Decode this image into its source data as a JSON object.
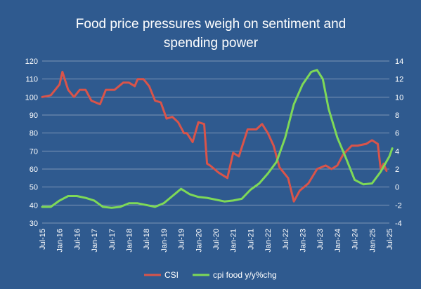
{
  "chart_data": {
    "type": "line",
    "title_lines": [
      "Food price pressures weigh on sentiment and",
      "spending power"
    ],
    "x_tick_labels": [
      "Jul-15",
      "Jan-16",
      "Jul-16",
      "Jan-17",
      "Jul-17",
      "Jan-18",
      "Jul-18",
      "Jan-19",
      "Jul-19",
      "Jan-20",
      "Jul-20",
      "Jan-21",
      "Jul-21",
      "Jan-22",
      "Jul-22",
      "Jan-23",
      "Jul-23",
      "Jan-24",
      "Jul-24",
      "Jan-25",
      "Jul-25"
    ],
    "y_left": {
      "min": 30,
      "max": 120,
      "step": 10
    },
    "y_right": {
      "min": -4,
      "max": 14,
      "step": 2
    },
    "grid": "horizontal",
    "legend_position": "bottom",
    "colors": {
      "background": "#2f5a8f",
      "grid": "#7d95b6",
      "csi": "#d9544a",
      "cpi_food": "#7ed957",
      "text": "#ffffff"
    },
    "series": [
      {
        "name": "CSI",
        "axis": "left",
        "points": [
          [
            "2015-07",
            100
          ],
          [
            "2015-10",
            101
          ],
          [
            "2016-01",
            107
          ],
          [
            "2016-02",
            114
          ],
          [
            "2016-04",
            104
          ],
          [
            "2016-06",
            100
          ],
          [
            "2016-08",
            104
          ],
          [
            "2016-10",
            104
          ],
          [
            "2016-12",
            98
          ],
          [
            "2017-03",
            96
          ],
          [
            "2017-05",
            104
          ],
          [
            "2017-08",
            104
          ],
          [
            "2017-11",
            108
          ],
          [
            "2018-01",
            108
          ],
          [
            "2018-03",
            106
          ],
          [
            "2018-04",
            110
          ],
          [
            "2018-06",
            110
          ],
          [
            "2018-08",
            106
          ],
          [
            "2018-10",
            98
          ],
          [
            "2018-12",
            97
          ],
          [
            "2019-02",
            88
          ],
          [
            "2019-04",
            89
          ],
          [
            "2019-06",
            86
          ],
          [
            "2019-08",
            80
          ],
          [
            "2019-09",
            80
          ],
          [
            "2019-11",
            75
          ],
          [
            "2020-01",
            86
          ],
          [
            "2020-03",
            85
          ],
          [
            "2020-04",
            63
          ],
          [
            "2020-05",
            62
          ],
          [
            "2020-08",
            58
          ],
          [
            "2020-11",
            55
          ],
          [
            "2021-01",
            69
          ],
          [
            "2021-03",
            67
          ],
          [
            "2021-06",
            82
          ],
          [
            "2021-09",
            82
          ],
          [
            "2021-11",
            85
          ],
          [
            "2022-01",
            80
          ],
          [
            "2022-03",
            73
          ],
          [
            "2022-05",
            61
          ],
          [
            "2022-08",
            55
          ],
          [
            "2022-10",
            42
          ],
          [
            "2022-12",
            48
          ],
          [
            "2023-03",
            52
          ],
          [
            "2023-06",
            60
          ],
          [
            "2023-09",
            62
          ],
          [
            "2023-11",
            60
          ],
          [
            "2024-01",
            62
          ],
          [
            "2024-03",
            68
          ],
          [
            "2024-06",
            73
          ],
          [
            "2024-08",
            73
          ],
          [
            "2024-11",
            74
          ],
          [
            "2025-01",
            76
          ],
          [
            "2025-03",
            74
          ],
          [
            "2025-04",
            60
          ],
          [
            "2025-05",
            63
          ],
          [
            "2025-06",
            59
          ]
        ]
      },
      {
        "name": "cpi food y/y%chg",
        "axis": "right",
        "points": [
          [
            "2015-07",
            -2.2
          ],
          [
            "2015-10",
            -2.2
          ],
          [
            "2016-01",
            -1.5
          ],
          [
            "2016-04",
            -1.0
          ],
          [
            "2016-07",
            -1.0
          ],
          [
            "2016-10",
            -1.2
          ],
          [
            "2017-01",
            -1.5
          ],
          [
            "2017-04",
            -2.2
          ],
          [
            "2017-07",
            -2.3
          ],
          [
            "2017-10",
            -2.2
          ],
          [
            "2018-01",
            -1.8
          ],
          [
            "2018-04",
            -1.8
          ],
          [
            "2018-07",
            -2.0
          ],
          [
            "2018-10",
            -2.2
          ],
          [
            "2019-01",
            -1.8
          ],
          [
            "2019-04",
            -1.0
          ],
          [
            "2019-07",
            -0.2
          ],
          [
            "2019-10",
            -0.8
          ],
          [
            "2020-01",
            -1.1
          ],
          [
            "2020-04",
            -1.2
          ],
          [
            "2020-07",
            -1.4
          ],
          [
            "2020-10",
            -1.6
          ],
          [
            "2021-01",
            -1.5
          ],
          [
            "2021-04",
            -1.3
          ],
          [
            "2021-07",
            -0.3
          ],
          [
            "2021-10",
            0.4
          ],
          [
            "2022-01",
            1.5
          ],
          [
            "2022-04",
            2.8
          ],
          [
            "2022-07",
            5.5
          ],
          [
            "2022-10",
            9.2
          ],
          [
            "2023-01",
            11.4
          ],
          [
            "2023-04",
            12.8
          ],
          [
            "2023-06",
            13.0
          ],
          [
            "2023-08",
            12.0
          ],
          [
            "2023-10",
            8.7
          ],
          [
            "2024-01",
            5.5
          ],
          [
            "2024-04",
            3.2
          ],
          [
            "2024-07",
            0.8
          ],
          [
            "2024-10",
            0.3
          ],
          [
            "2025-01",
            0.4
          ],
          [
            "2025-04",
            1.7
          ],
          [
            "2025-07",
            3.4
          ],
          [
            "2025-08",
            4.3
          ]
        ]
      }
    ]
  }
}
